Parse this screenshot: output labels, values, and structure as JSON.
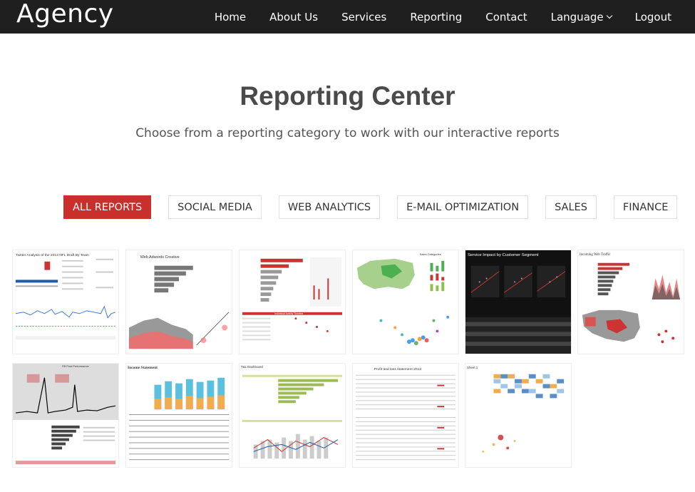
{
  "brand": "Agency",
  "nav": {
    "home": "Home",
    "about": "About Us",
    "services": "Services",
    "reporting": "Reporting",
    "contact": "Contact",
    "language": "Language",
    "logout": "Logout"
  },
  "hero": {
    "title": "Reporting Center",
    "subtitle": "Choose from a reporting category to work with our interactive reports"
  },
  "filters": [
    "ALL REPORTS",
    "SOCIAL MEDIA",
    "WEB ANALYTICS",
    "E-MAIL OPTIMIZATION",
    "SALES",
    "FINANCE"
  ],
  "active_filter": "ALL REPORTS",
  "reports": [
    {
      "title": "Twitter Analysis of the 2013 NFL Draft By Team"
    },
    {
      "title": "Web Adwords Creative"
    },
    {
      "title": "Individual Activity Timeline"
    },
    {
      "title": "Sales Categories"
    },
    {
      "title": "Service Impact by Customer Segment"
    },
    {
      "title": "Incoming Web Traffic"
    },
    {
      "title": "FB Post Performance"
    },
    {
      "title": "Income Statement"
    },
    {
      "title": "T&L Dashboard"
    },
    {
      "title": "Profit and loss statement 2012"
    },
    {
      "title": "Sheet 1"
    }
  ],
  "colors": {
    "navbar": "#1f1f1f",
    "accent": "#c9302c"
  }
}
